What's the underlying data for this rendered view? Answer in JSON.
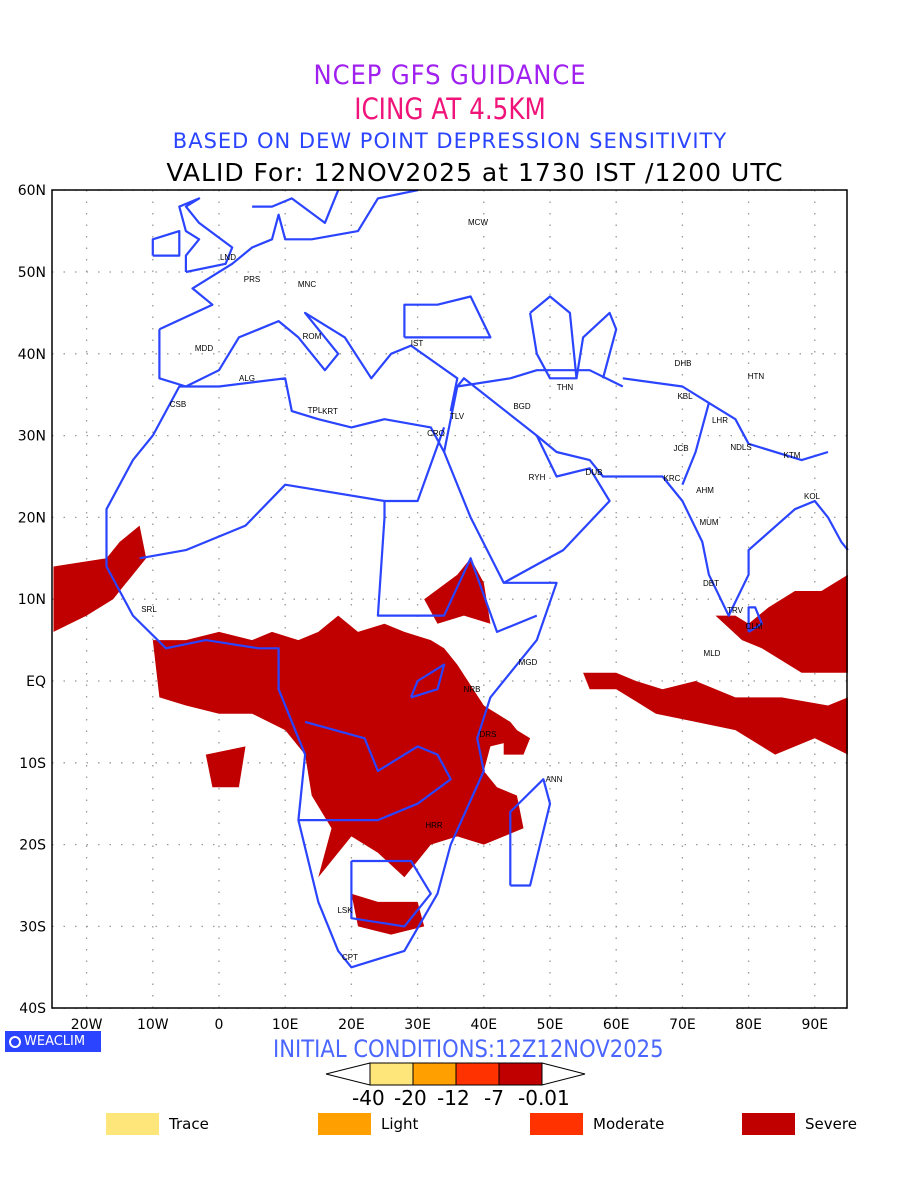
{
  "title": {
    "line1": "NCEP GFS GUIDANCE",
    "line2": "ICING AT 4.5KM",
    "line3": "BASED ON DEW POINT DEPRESSION SENSITIVITY",
    "line4": "VALID For: 12NOV2025 at 1730 IST /1200 UTC"
  },
  "axes": {
    "lon_ticks": [
      "20W",
      "10W",
      "0",
      "10E",
      "20E",
      "30E",
      "40E",
      "50E",
      "60E",
      "70E",
      "80E",
      "90E"
    ],
    "lat_ticks": [
      "60N",
      "50N",
      "40N",
      "30N",
      "20N",
      "10N",
      "EQ",
      "10S",
      "20S",
      "30S",
      "40S"
    ]
  },
  "cities": [
    "MCW",
    "LND",
    "PRS",
    "MNC",
    "ROM",
    "MDD",
    "IST",
    "ALG",
    "CSB",
    "TPL",
    "KRT",
    "TLV",
    "CRO",
    "BGD",
    "THN",
    "DHB",
    "HTN",
    "KBL",
    "LHR",
    "JCB",
    "NDLS",
    "KTM",
    "DUB",
    "RYH",
    "KRC",
    "AHM",
    "KOL",
    "MUM",
    "DBT",
    "TRV",
    "CLM",
    "MLD",
    "SRL",
    "MGD",
    "NRB",
    "DRS",
    "ANN",
    "HRR",
    "LSK",
    "CPT"
  ],
  "logo": "WEACLIM",
  "initial_conditions": "INITIAL CONDITIONS:12Z12NOV2025",
  "colorbar": {
    "labels": [
      "-40",
      "-20",
      "-12",
      "-7",
      "-0.01"
    ],
    "colors": [
      "#ffe67a",
      "#ffa000",
      "#ff3200",
      "#c00000"
    ]
  },
  "legend": [
    {
      "label": "Trace",
      "color": "#ffe67a"
    },
    {
      "label": "Light",
      "color": "#ffa000"
    },
    {
      "label": "Moderate",
      "color": "#ff3200"
    },
    {
      "label": "Severe",
      "color": "#c00000"
    }
  ],
  "colors": {
    "coast": "#2a44ff",
    "severe": "#c00000"
  }
}
